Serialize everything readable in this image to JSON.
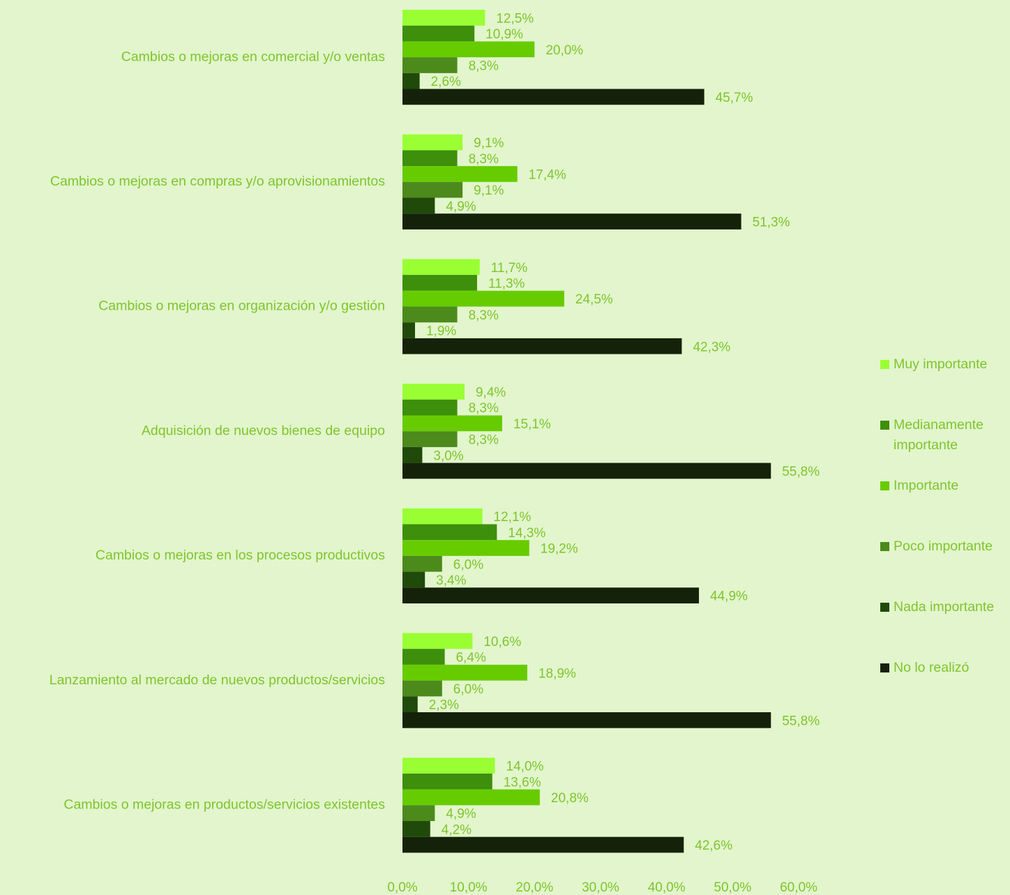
{
  "chart_data": {
    "type": "bar",
    "orientation": "horizontal",
    "categories": [
      "Cambios o mejoras en comercial y/o ventas",
      "Cambios o mejoras en compras y/o aprovisionamientos",
      "Cambios o mejoras en organización y/o gestión",
      "Adquisición de nuevos bienes de equipo",
      "Cambios o mejoras en los procesos productivos",
      "Lanzamiento al mercado de nuevos productos/servicios",
      "Cambios o mejoras en productos/servicios existentes"
    ],
    "series": [
      {
        "name": "Muy importante",
        "color": "#99ff33",
        "values": [
          12.5,
          9.1,
          11.7,
          9.4,
          12.1,
          10.6,
          14.0
        ],
        "value_labels": [
          "12,5%",
          "9,1%",
          "11,7%",
          "9,4%",
          "12,1%",
          "10,6%",
          "14,0%"
        ]
      },
      {
        "name": "Medianamente importante",
        "color": "#3d8f0c",
        "values": [
          10.9,
          8.3,
          11.3,
          8.3,
          14.3,
          6.4,
          13.6
        ],
        "value_labels": [
          "10,9%",
          "8,3%",
          "11,3%",
          "8,3%",
          "14,3%",
          "6,4%",
          "13,6%"
        ]
      },
      {
        "name": "Importante",
        "color": "#66cc00",
        "values": [
          20.0,
          17.4,
          24.5,
          15.1,
          19.2,
          18.9,
          20.8
        ],
        "value_labels": [
          "20,0%",
          "17,4%",
          "24,5%",
          "15,1%",
          "19,2%",
          "18,9%",
          "20,8%"
        ]
      },
      {
        "name": "Poco importante",
        "color": "#4c8a1c",
        "values": [
          8.3,
          9.1,
          8.3,
          8.3,
          6.0,
          6.0,
          4.9
        ],
        "value_labels": [
          "8,3%",
          "9,1%",
          "8,3%",
          "8,3%",
          "6,0%",
          "6,0%",
          "4,9%"
        ]
      },
      {
        "name": "Nada importante",
        "color": "#1f4a0a",
        "values": [
          2.6,
          4.9,
          1.9,
          3.0,
          3.4,
          2.3,
          4.2
        ],
        "value_labels": [
          "2,6%",
          "4,9%",
          "1,9%",
          "3,0%",
          "3,4%",
          "2,3%",
          "4,2%"
        ]
      },
      {
        "name": "No lo realizó",
        "color": "#15220a",
        "values": [
          45.7,
          51.3,
          42.3,
          55.8,
          44.9,
          55.8,
          42.6
        ],
        "value_labels": [
          "45,7%",
          "51,3%",
          "42,3%",
          "55,8%",
          "44,9%",
          "55,8%",
          "42,6%"
        ]
      }
    ],
    "xlim": [
      0,
      60
    ],
    "xticks": [
      {
        "value": 0,
        "label": "0,0%"
      },
      {
        "value": 10,
        "label": "10,0%"
      },
      {
        "value": 20,
        "label": "20,0%"
      },
      {
        "value": 30,
        "label": "30,0%"
      },
      {
        "value": 40,
        "label": "40,0%"
      },
      {
        "value": 50,
        "label": "50,0%"
      },
      {
        "value": 60,
        "label": "60,0%"
      }
    ],
    "legend": "right"
  }
}
